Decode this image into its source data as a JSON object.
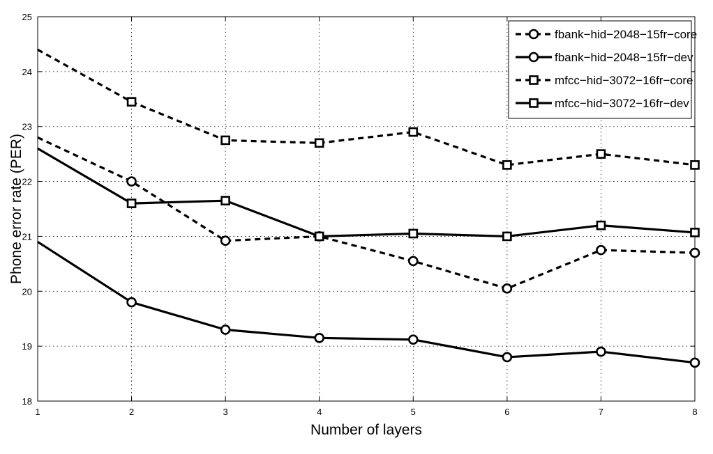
{
  "chart_data": {
    "type": "line",
    "title": "",
    "xlabel": "Number of layers",
    "ylabel": "Phone error rate (PER)",
    "x": [
      1,
      2,
      3,
      4,
      5,
      6,
      7,
      8
    ],
    "xlim": [
      1,
      8
    ],
    "ylim": [
      18,
      25
    ],
    "xticks": [
      1,
      2,
      3,
      4,
      5,
      6,
      7,
      8
    ],
    "yticks": [
      18,
      19,
      20,
      21,
      22,
      23,
      24,
      25
    ],
    "grid": true,
    "legend_position": "top-right",
    "series": [
      {
        "name": "fbank−hid−2048−15fr−core",
        "line_style": "dashed",
        "marker": "circle",
        "values": [
          22.8,
          22.0,
          20.92,
          21.0,
          20.55,
          20.05,
          20.75,
          20.7
        ]
      },
      {
        "name": "fbank−hid−2048−15fr−dev",
        "line_style": "solid",
        "marker": "circle",
        "values": [
          20.9,
          19.8,
          19.3,
          19.15,
          19.12,
          18.8,
          18.9,
          18.7
        ]
      },
      {
        "name": "mfcc−hid−3072−16fr−core",
        "line_style": "dashed",
        "marker": "square",
        "values": [
          24.4,
          23.45,
          22.75,
          22.7,
          22.9,
          22.3,
          22.5,
          22.3
        ]
      },
      {
        "name": "mfcc−hid−3072−16fr−dev",
        "line_style": "solid",
        "marker": "square",
        "values": [
          22.6,
          21.6,
          21.65,
          21.0,
          21.05,
          21.0,
          21.2,
          21.07
        ]
      }
    ]
  }
}
